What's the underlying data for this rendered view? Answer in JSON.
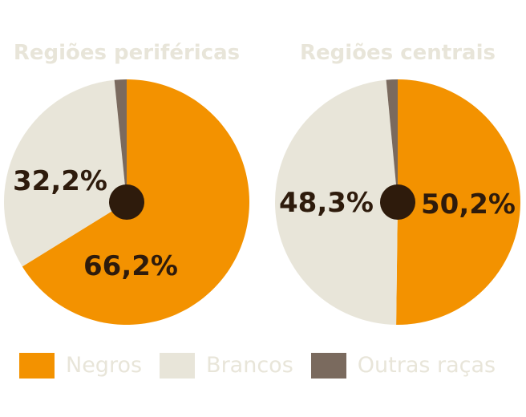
{
  "colors": {
    "negros": "#F39200",
    "brancos": "#E8E5D9",
    "outras": "#7A6A5E",
    "center_dot": "#2E1B0C",
    "label_text": "#2E1B0C",
    "title_text": "#E8E5D9",
    "legend_text": "#E8E5D9"
  },
  "legend": [
    {
      "label": "Negros",
      "color": "#F39200"
    },
    {
      "label": "Brancos",
      "color": "#E8E5D9"
    },
    {
      "label": "Outras raças",
      "color": "#7A6A5E"
    }
  ],
  "chart_data": [
    {
      "type": "pie",
      "title": "Regiões periféricas",
      "labels": [
        "Negros",
        "Brancos",
        "Outras raças"
      ],
      "values": [
        66.2,
        32.2,
        1.6
      ],
      "value_labels": [
        "66,2%",
        "32,2%",
        ""
      ],
      "colors": [
        "#F39200",
        "#E8E5D9",
        "#7A6A5E"
      ]
    },
    {
      "type": "pie",
      "title": "Regiões centrais",
      "labels": [
        "Negros",
        "Brancos",
        "Outras raças"
      ],
      "values": [
        50.2,
        48.3,
        1.5
      ],
      "value_labels": [
        "50,2%",
        "48,3%",
        ""
      ],
      "colors": [
        "#F39200",
        "#E8E5D9",
        "#7A6A5E"
      ]
    }
  ]
}
